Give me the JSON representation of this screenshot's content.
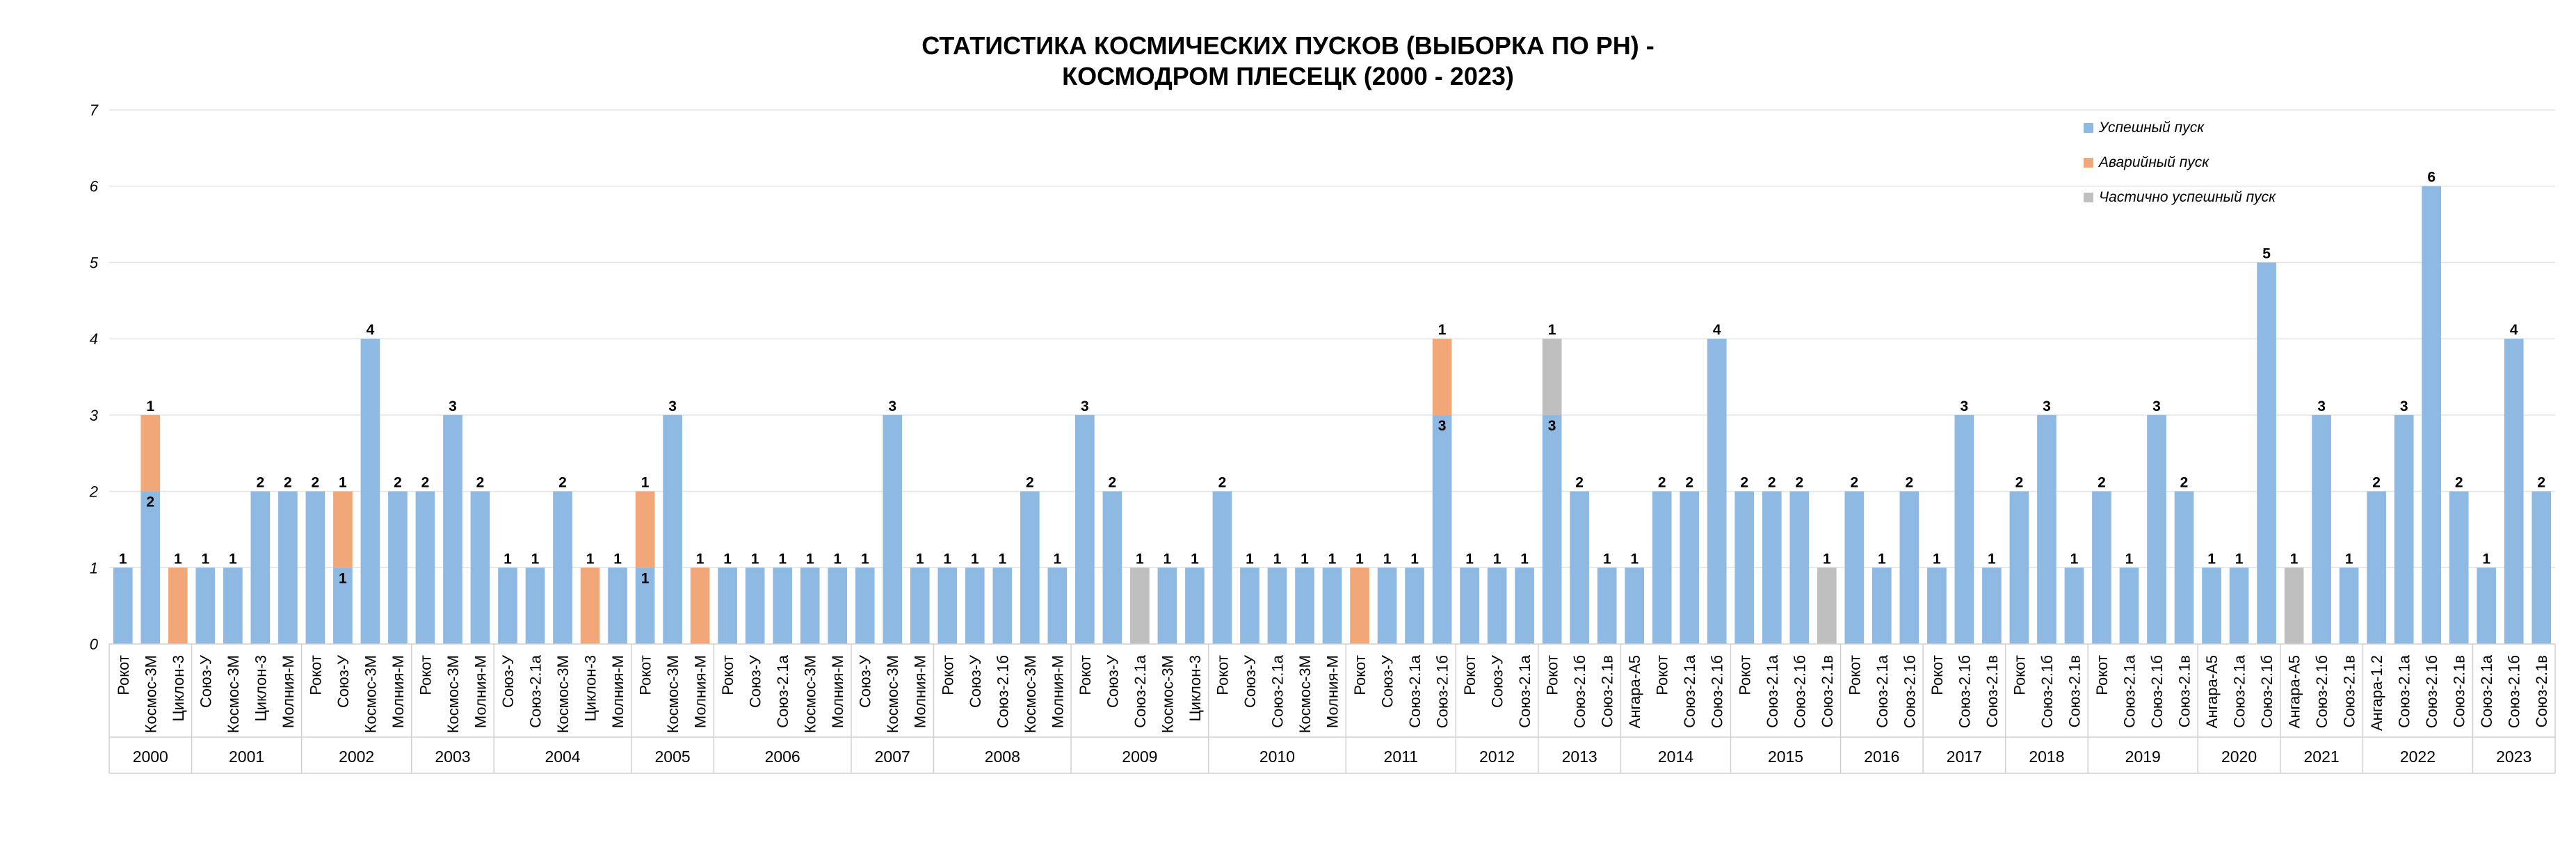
{
  "chart_data": {
    "type": "bar",
    "stacked": true,
    "title_lines": [
      "СТАТИСТИКА КОСМИЧЕСКИХ ПУСКОВ (ВЫБОРКА ПО РН) -",
      "КОСМОДРОМ ПЛЕСЕЦК (2000 - 2023)"
    ],
    "ylim": [
      0,
      7
    ],
    "yticks": [
      "0",
      "1",
      "2",
      "3",
      "4",
      "5",
      "6",
      "7"
    ],
    "grid": true,
    "legend_position": "top-right",
    "series": [
      {
        "key": "s",
        "name": "Успешный пуск",
        "color": "#8EB9E3"
      },
      {
        "key": "f",
        "name": "Аварийный пуск",
        "color": "#F1A777"
      },
      {
        "key": "p",
        "name": "Частично успешный пуск",
        "color": "#BFBFBF"
      }
    ],
    "groups": [
      {
        "year": "2000",
        "items": [
          {
            "label": "Рокот",
            "s": 1,
            "f": 0,
            "p": 0
          },
          {
            "label": "Космос-3М",
            "s": 2,
            "f": 1,
            "p": 0
          },
          {
            "label": "Циклон-3",
            "s": 0,
            "f": 1,
            "p": 0
          }
        ]
      },
      {
        "year": "2001",
        "items": [
          {
            "label": "Союз-У",
            "s": 1,
            "f": 0,
            "p": 0
          },
          {
            "label": "Космос-3М",
            "s": 1,
            "f": 0,
            "p": 0
          },
          {
            "label": "Циклон-3",
            "s": 2,
            "f": 0,
            "p": 0
          },
          {
            "label": "Молния-М",
            "s": 2,
            "f": 0,
            "p": 0
          }
        ]
      },
      {
        "year": "2002",
        "items": [
          {
            "label": "Рокот",
            "s": 2,
            "f": 0,
            "p": 0
          },
          {
            "label": "Союз-У",
            "s": 1,
            "f": 1,
            "p": 0
          },
          {
            "label": "Космос-3М",
            "s": 4,
            "f": 0,
            "p": 0
          },
          {
            "label": "Молния-М",
            "s": 2,
            "f": 0,
            "p": 0
          }
        ]
      },
      {
        "year": "2003",
        "items": [
          {
            "label": "Рокот",
            "s": 2,
            "f": 0,
            "p": 0
          },
          {
            "label": "Космос-3М",
            "s": 3,
            "f": 0,
            "p": 0
          },
          {
            "label": "Молния-М",
            "s": 2,
            "f": 0,
            "p": 0
          }
        ]
      },
      {
        "year": "2004",
        "items": [
          {
            "label": "Союз-У",
            "s": 1,
            "f": 0,
            "p": 0
          },
          {
            "label": "Союз-2.1а",
            "s": 1,
            "f": 0,
            "p": 0
          },
          {
            "label": "Космос-3М",
            "s": 2,
            "f": 0,
            "p": 0
          },
          {
            "label": "Циклон-3",
            "s": 0,
            "f": 1,
            "p": 0
          },
          {
            "label": "Молния-М",
            "s": 1,
            "f": 0,
            "p": 0
          }
        ]
      },
      {
        "year": "2005",
        "items": [
          {
            "label": "Рокот",
            "s": 1,
            "f": 1,
            "p": 0
          },
          {
            "label": "Космос-3М",
            "s": 3,
            "f": 0,
            "p": 0
          },
          {
            "label": "Молния-М",
            "s": 0,
            "f": 1,
            "p": 0
          }
        ]
      },
      {
        "year": "2006",
        "items": [
          {
            "label": "Рокот",
            "s": 1,
            "f": 0,
            "p": 0
          },
          {
            "label": "Союз-У",
            "s": 1,
            "f": 0,
            "p": 0
          },
          {
            "label": "Союз-2.1а",
            "s": 1,
            "f": 0,
            "p": 0
          },
          {
            "label": "Космос-3М",
            "s": 1,
            "f": 0,
            "p": 0
          },
          {
            "label": "Молния-М",
            "s": 1,
            "f": 0,
            "p": 0
          }
        ]
      },
      {
        "year": "2007",
        "items": [
          {
            "label": "Союз-У",
            "s": 1,
            "f": 0,
            "p": 0
          },
          {
            "label": "Космос-3М",
            "s": 3,
            "f": 0,
            "p": 0
          },
          {
            "label": "Молния-М",
            "s": 1,
            "f": 0,
            "p": 0
          }
        ]
      },
      {
        "year": "2008",
        "items": [
          {
            "label": "Рокот",
            "s": 1,
            "f": 0,
            "p": 0
          },
          {
            "label": "Союз-У",
            "s": 1,
            "f": 0,
            "p": 0
          },
          {
            "label": "Союз-2.1б",
            "s": 1,
            "f": 0,
            "p": 0
          },
          {
            "label": "Космос-3М",
            "s": 2,
            "f": 0,
            "p": 0
          },
          {
            "label": "Молния-М",
            "s": 1,
            "f": 0,
            "p": 0
          }
        ]
      },
      {
        "year": "2009",
        "items": [
          {
            "label": "Рокот",
            "s": 3,
            "f": 0,
            "p": 0
          },
          {
            "label": "Союз-У",
            "s": 2,
            "f": 0,
            "p": 0
          },
          {
            "label": "Союз-2.1а",
            "s": 0,
            "f": 0,
            "p": 1
          },
          {
            "label": "Космос-3М",
            "s": 1,
            "f": 0,
            "p": 0
          },
          {
            "label": "Циклон-3",
            "s": 1,
            "f": 0,
            "p": 0
          }
        ]
      },
      {
        "year": "2010",
        "items": [
          {
            "label": "Рокот",
            "s": 2,
            "f": 0,
            "p": 0
          },
          {
            "label": "Союз-У",
            "s": 1,
            "f": 0,
            "p": 0
          },
          {
            "label": "Союз-2.1а",
            "s": 1,
            "f": 0,
            "p": 0
          },
          {
            "label": "Космос-3М",
            "s": 1,
            "f": 0,
            "p": 0
          },
          {
            "label": "Молния-М",
            "s": 1,
            "f": 0,
            "p": 0
          }
        ]
      },
      {
        "year": "2011",
        "items": [
          {
            "label": "Рокот",
            "s": 0,
            "f": 1,
            "p": 0
          },
          {
            "label": "Союз-У",
            "s": 1,
            "f": 0,
            "p": 0
          },
          {
            "label": "Союз-2.1а",
            "s": 1,
            "f": 0,
            "p": 0
          },
          {
            "label": "Союз-2.1б",
            "s": 3,
            "f": 1,
            "p": 0
          }
        ]
      },
      {
        "year": "2012",
        "items": [
          {
            "label": "Рокот",
            "s": 1,
            "f": 0,
            "p": 0
          },
          {
            "label": "Союз-У",
            "s": 1,
            "f": 0,
            "p": 0
          },
          {
            "label": "Союз-2.1а",
            "s": 1,
            "f": 0,
            "p": 0
          }
        ]
      },
      {
        "year": "2013",
        "items": [
          {
            "label": "Рокот",
            "s": 3,
            "f": 0,
            "p": 1
          },
          {
            "label": "Союз-2.1б",
            "s": 2,
            "f": 0,
            "p": 0
          },
          {
            "label": "Союз-2.1в",
            "s": 1,
            "f": 0,
            "p": 0
          }
        ]
      },
      {
        "year": "2014",
        "items": [
          {
            "label": "Ангара-А5",
            "s": 1,
            "f": 0,
            "p": 0
          },
          {
            "label": "Рокот",
            "s": 2,
            "f": 0,
            "p": 0
          },
          {
            "label": "Союз-2.1а",
            "s": 2,
            "f": 0,
            "p": 0
          },
          {
            "label": "Союз-2.1б",
            "s": 4,
            "f": 0,
            "p": 0
          }
        ]
      },
      {
        "year": "2015",
        "items": [
          {
            "label": "Рокот",
            "s": 2,
            "f": 0,
            "p": 0
          },
          {
            "label": "Союз-2.1а",
            "s": 2,
            "f": 0,
            "p": 0
          },
          {
            "label": "Союз-2.1б",
            "s": 2,
            "f": 0,
            "p": 0
          },
          {
            "label": "Союз-2.1в",
            "s": 0,
            "f": 0,
            "p": 1
          }
        ]
      },
      {
        "year": "2016",
        "items": [
          {
            "label": "Рокот",
            "s": 2,
            "f": 0,
            "p": 0
          },
          {
            "label": "Союз-2.1а",
            "s": 1,
            "f": 0,
            "p": 0
          },
          {
            "label": "Союз-2.1б",
            "s": 2,
            "f": 0,
            "p": 0
          }
        ]
      },
      {
        "year": "2017",
        "items": [
          {
            "label": "Рокот",
            "s": 1,
            "f": 0,
            "p": 0
          },
          {
            "label": "Союз-2.1б",
            "s": 3,
            "f": 0,
            "p": 0
          },
          {
            "label": "Союз-2.1в",
            "s": 1,
            "f": 0,
            "p": 0
          }
        ]
      },
      {
        "year": "2018",
        "items": [
          {
            "label": "Рокот",
            "s": 2,
            "f": 0,
            "p": 0
          },
          {
            "label": "Союз-2.1б",
            "s": 3,
            "f": 0,
            "p": 0
          },
          {
            "label": "Союз-2.1в",
            "s": 1,
            "f": 0,
            "p": 0
          }
        ]
      },
      {
        "year": "2019",
        "items": [
          {
            "label": "Рокот",
            "s": 2,
            "f": 0,
            "p": 0
          },
          {
            "label": "Союз-2.1а",
            "s": 1,
            "f": 0,
            "p": 0
          },
          {
            "label": "Союз-2.1б",
            "s": 3,
            "f": 0,
            "p": 0
          },
          {
            "label": "Союз-2.1в",
            "s": 2,
            "f": 0,
            "p": 0
          }
        ]
      },
      {
        "year": "2020",
        "items": [
          {
            "label": "Ангара-А5",
            "s": 1,
            "f": 0,
            "p": 0
          },
          {
            "label": "Союз-2.1а",
            "s": 1,
            "f": 0,
            "p": 0
          },
          {
            "label": "Союз-2.1б",
            "s": 5,
            "f": 0,
            "p": 0
          }
        ]
      },
      {
        "year": "2021",
        "items": [
          {
            "label": "Ангара-А5",
            "s": 0,
            "f": 0,
            "p": 1
          },
          {
            "label": "Союз-2.1б",
            "s": 3,
            "f": 0,
            "p": 0
          },
          {
            "label": "Союз-2.1в",
            "s": 1,
            "f": 0,
            "p": 0
          }
        ]
      },
      {
        "year": "2022",
        "items": [
          {
            "label": "Ангара-1.2",
            "s": 2,
            "f": 0,
            "p": 0
          },
          {
            "label": "Союз-2.1а",
            "s": 3,
            "f": 0,
            "p": 0
          },
          {
            "label": "Союз-2.1б",
            "s": 6,
            "f": 0,
            "p": 0
          },
          {
            "label": "Союз-2.1в",
            "s": 2,
            "f": 0,
            "p": 0
          }
        ]
      },
      {
        "year": "2023",
        "items": [
          {
            "label": "Союз-2.1а",
            "s": 1,
            "f": 0,
            "p": 0
          },
          {
            "label": "Союз-2.1б",
            "s": 4,
            "f": 0,
            "p": 0
          },
          {
            "label": "Союз-2.1в",
            "s": 2,
            "f": 0,
            "p": 0
          }
        ]
      }
    ]
  }
}
